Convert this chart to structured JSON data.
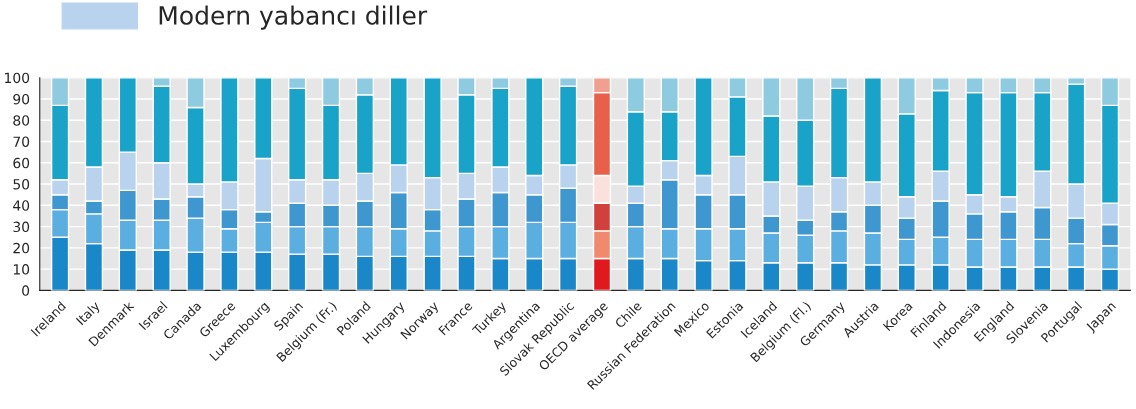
{
  "chart_data": {
    "type": "bar",
    "stacked": true,
    "categories": [
      "Ireland",
      "Italy",
      "Denmark",
      "Israel",
      "Canada",
      "Greece",
      "Luxembourg",
      "Spain",
      "Belgium (Fr.)",
      "Poland",
      "Hungary",
      "Norway",
      "France",
      "Turkey",
      "Argentina",
      "Slovak Republic",
      "OECD average",
      "Chile",
      "Russian Federation",
      "Mexico",
      "Estonia",
      "Iceland",
      "Belgium (Fl.)",
      "Germany",
      "Austria",
      "Korea",
      "Finland",
      "Indonesia",
      "England",
      "Slovenia",
      "Portugal",
      "Japan"
    ],
    "series": [
      {
        "colors": [
          "#1a87c9",
          "#1a87c9",
          "#1a87c9",
          "#1a87c9",
          "#1a87c9",
          "#1a87c9",
          "#1a87c9",
          "#1a87c9",
          "#1a87c9",
          "#1a87c9",
          "#1a87c9",
          "#1a87c9",
          "#1a87c9",
          "#1a87c9",
          "#1a87c9",
          "#1a87c9",
          "#e0191f",
          "#1a87c9",
          "#1a87c9",
          "#1a87c9",
          "#1a87c9",
          "#1a87c9",
          "#1a87c9",
          "#1a87c9",
          "#1a87c9",
          "#1a87c9",
          "#1a87c9",
          "#1a87c9",
          "#1a87c9",
          "#1a87c9",
          "#1a87c9",
          "#1a87c9"
        ],
        "values": [
          25,
          22,
          19,
          19,
          18,
          18,
          18,
          17,
          17,
          16,
          16,
          16,
          16,
          15,
          15,
          15,
          15,
          15,
          15,
          14,
          14,
          13,
          13,
          13,
          12,
          12,
          12,
          11,
          11,
          11,
          11,
          10
        ]
      },
      {
        "colors": [
          "#5aaee0",
          "#5aaee0",
          "#5aaee0",
          "#5aaee0",
          "#5aaee0",
          "#5aaee0",
          "#5aaee0",
          "#5aaee0",
          "#5aaee0",
          "#5aaee0",
          "#5aaee0",
          "#5aaee0",
          "#5aaee0",
          "#5aaee0",
          "#5aaee0",
          "#5aaee0",
          "#f08a6e",
          "#5aaee0",
          "#5aaee0",
          "#5aaee0",
          "#5aaee0",
          "#5aaee0",
          "#5aaee0",
          "#5aaee0",
          "#5aaee0",
          "#5aaee0",
          "#5aaee0",
          "#5aaee0",
          "#5aaee0",
          "#5aaee0",
          "#5aaee0",
          "#5aaee0"
        ],
        "values": [
          13,
          14,
          14,
          14,
          16,
          11,
          14,
          13,
          13,
          14,
          13,
          12,
          14,
          15,
          17,
          17,
          13,
          15,
          14,
          15,
          15,
          14,
          13,
          15,
          15,
          12,
          13,
          13,
          13,
          13,
          11,
          11
        ]
      },
      {
        "colors": [
          "#3f97cf",
          "#3f97cf",
          "#3f97cf",
          "#3f97cf",
          "#3f97cf",
          "#3f97cf",
          "#3f97cf",
          "#3f97cf",
          "#3f97cf",
          "#3f97cf",
          "#3f97cf",
          "#3f97cf",
          "#3f97cf",
          "#3f97cf",
          "#3f97cf",
          "#3f97cf",
          "#d0403c",
          "#3f97cf",
          "#3f97cf",
          "#3f97cf",
          "#3f97cf",
          "#3f97cf",
          "#3f97cf",
          "#3f97cf",
          "#3f97cf",
          "#3f97cf",
          "#3f97cf",
          "#3f97cf",
          "#3f97cf",
          "#3f97cf",
          "#3f97cf",
          "#3f97cf"
        ],
        "values": [
          7,
          6,
          14,
          10,
          10,
          9,
          5,
          11,
          10,
          12,
          17,
          10,
          13,
          16,
          13,
          16,
          13,
          11,
          23,
          16,
          16,
          8,
          7,
          9,
          13,
          10,
          17,
          12,
          13,
          15,
          12,
          10
        ]
      },
      {
        "name": "Modern yabancı diller",
        "color": "#b9d3ee",
        "colors": [
          "#b9d3ee",
          "#b9d3ee",
          "#b9d3ee",
          "#b9d3ee",
          "#b9d3ee",
          "#b9d3ee",
          "#b9d3ee",
          "#b9d3ee",
          "#b9d3ee",
          "#b9d3ee",
          "#b9d3ee",
          "#b9d3ee",
          "#b9d3ee",
          "#b9d3ee",
          "#b9d3ee",
          "#b9d3ee",
          "#fbe1dc",
          "#b9d3ee",
          "#b9d3ee",
          "#b9d3ee",
          "#b9d3ee",
          "#b9d3ee",
          "#b9d3ee",
          "#b9d3ee",
          "#b9d3ee",
          "#b9d3ee",
          "#b9d3ee",
          "#b9d3ee",
          "#b9d3ee",
          "#b9d3ee",
          "#b9d3ee",
          "#b9d3ee"
        ],
        "values": [
          7,
          16,
          18,
          17,
          6,
          13,
          25,
          11,
          12,
          13,
          13,
          15,
          12,
          12,
          9,
          11,
          13,
          8,
          9,
          9,
          18,
          16,
          16,
          16,
          11,
          10,
          14,
          9,
          7,
          17,
          16,
          10
        ]
      },
      {
        "colors": [
          "#1aa3c8",
          "#1aa3c8",
          "#1aa3c8",
          "#1aa3c8",
          "#1aa3c8",
          "#1aa3c8",
          "#1aa3c8",
          "#1aa3c8",
          "#1aa3c8",
          "#1aa3c8",
          "#1aa3c8",
          "#1aa3c8",
          "#1aa3c8",
          "#1aa3c8",
          "#1aa3c8",
          "#1aa3c8",
          "#e8604a",
          "#1aa3c8",
          "#1aa3c8",
          "#1aa3c8",
          "#1aa3c8",
          "#1aa3c8",
          "#1aa3c8",
          "#1aa3c8",
          "#1aa3c8",
          "#1aa3c8",
          "#1aa3c8",
          "#1aa3c8",
          "#1aa3c8",
          "#1aa3c8",
          "#1aa3c8",
          "#1aa3c8"
        ],
        "values": [
          35,
          42,
          35,
          36,
          36,
          49,
          38,
          43,
          35,
          37,
          41,
          47,
          37,
          37,
          46,
          37,
          39,
          35,
          23,
          46,
          28,
          31,
          31,
          42,
          49,
          39,
          38,
          48,
          49,
          37,
          47,
          46
        ]
      },
      {
        "colors": [
          "#8fcbe0",
          "#8fcbe0",
          "#8fcbe0",
          "#8fcbe0",
          "#8fcbe0",
          "#8fcbe0",
          "#8fcbe0",
          "#8fcbe0",
          "#8fcbe0",
          "#8fcbe0",
          "#8fcbe0",
          "#8fcbe0",
          "#8fcbe0",
          "#8fcbe0",
          "#8fcbe0",
          "#8fcbe0",
          "#f0a090",
          "#8fcbe0",
          "#8fcbe0",
          "#8fcbe0",
          "#8fcbe0",
          "#8fcbe0",
          "#8fcbe0",
          "#8fcbe0",
          "#8fcbe0",
          "#8fcbe0",
          "#8fcbe0",
          "#8fcbe0",
          "#8fcbe0",
          "#8fcbe0",
          "#8fcbe0",
          "#8fcbe0"
        ],
        "values": [
          13,
          null,
          null,
          4,
          14,
          null,
          null,
          5,
          13,
          8,
          null,
          null,
          8,
          5,
          null,
          4,
          7,
          16,
          16,
          null,
          9,
          18,
          20,
          5,
          null,
          17,
          6,
          7,
          7,
          7,
          3,
          13
        ]
      }
    ],
    "ylim": [
      0,
      100
    ],
    "yticks": [
      0,
      10,
      20,
      30,
      40,
      50,
      60,
      70,
      80,
      90,
      100
    ],
    "grid": true,
    "legend": "top left"
  }
}
